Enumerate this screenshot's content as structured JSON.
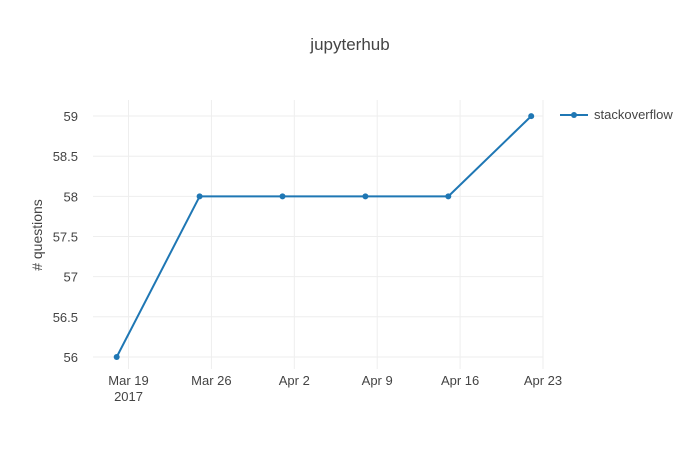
{
  "chart_data": {
    "type": "line",
    "title": "jupyterhub",
    "xlabel": "",
    "ylabel": "# questions",
    "x": [
      "2017-03-18",
      "2017-03-25",
      "2017-04-01",
      "2017-04-08",
      "2017-04-15",
      "2017-04-22"
    ],
    "series": [
      {
        "name": "stackoverflow",
        "values": [
          56,
          58,
          58,
          58,
          58,
          59
        ]
      }
    ],
    "xlim": [
      "2017-03-16",
      "2017-04-23"
    ],
    "ylim": [
      55.85,
      59.2
    ],
    "x_ticks": [
      {
        "date": "2017-03-19",
        "label": "Mar 19",
        "sublabel": "2017"
      },
      {
        "date": "2017-03-26",
        "label": "Mar 26",
        "sublabel": ""
      },
      {
        "date": "2017-04-02",
        "label": "Apr 2",
        "sublabel": ""
      },
      {
        "date": "2017-04-09",
        "label": "Apr 9",
        "sublabel": ""
      },
      {
        "date": "2017-04-16",
        "label": "Apr 16",
        "sublabel": ""
      },
      {
        "date": "2017-04-23",
        "label": "Apr 23",
        "sublabel": ""
      }
    ],
    "y_ticks": [
      56,
      56.5,
      57,
      57.5,
      58,
      58.5,
      59
    ],
    "grid": true,
    "legend_position": "top-right",
    "line_color": "#1f77b4",
    "grid_color": "#eeeeee"
  }
}
